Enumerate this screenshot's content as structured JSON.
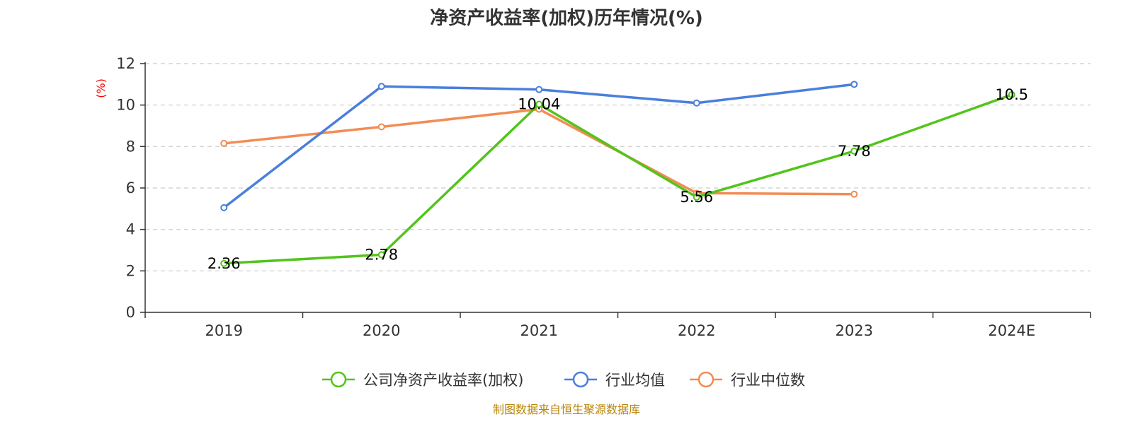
{
  "chart_data": {
    "type": "line",
    "title": "净资产收益率(加权)历年情况(%)",
    "ylabel": "(%)",
    "xlabel": "",
    "categories": [
      "2019",
      "2020",
      "2021",
      "2022",
      "2023",
      "2024E"
    ],
    "ylim": [
      0,
      12
    ],
    "yticks": [
      0,
      2,
      4,
      6,
      8,
      10,
      12
    ],
    "grid": true,
    "legend_position": "bottom",
    "series": [
      {
        "name": "公司净资产收益率(加权)",
        "color": "#52c41a",
        "values": [
          2.36,
          2.78,
          10.04,
          5.56,
          7.78,
          10.5
        ],
        "labels": [
          "2.36",
          "2.78",
          "10.04",
          "5.56",
          "7.78",
          "10.5"
        ]
      },
      {
        "name": "行业均值",
        "color": "#4a7fdc",
        "values": [
          5.05,
          10.9,
          10.75,
          10.1,
          11.0,
          null
        ]
      },
      {
        "name": "行业中位数",
        "color": "#f28c55",
        "values": [
          8.15,
          8.95,
          9.8,
          5.75,
          5.7,
          null
        ]
      }
    ]
  },
  "footer": {
    "source": "制图数据来自恒生聚源数据库"
  }
}
